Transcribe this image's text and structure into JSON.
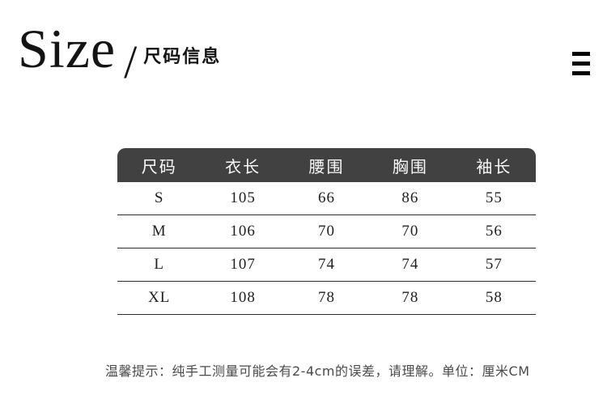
{
  "header": {
    "title_en": "Size",
    "divider": "/",
    "title_zh": "尺码信息",
    "menu_icon": "hamburger-menu-icon"
  },
  "table": {
    "headers": [
      "尺码",
      "衣长",
      "腰围",
      "胸围",
      "袖长"
    ],
    "rows": [
      {
        "cells": [
          "S",
          "105",
          "66",
          "86",
          "55"
        ]
      },
      {
        "cells": [
          "M",
          "106",
          "70",
          "70",
          "56"
        ]
      },
      {
        "cells": [
          "L",
          "107",
          "74",
          "74",
          "57"
        ]
      },
      {
        "cells": [
          "XL",
          "108",
          "78",
          "78",
          "58"
        ]
      }
    ]
  },
  "footer": {
    "note": "温馨提示：纯手工测量可能会有2-4cm的误差，请理解。单位：厘米CM"
  },
  "colors": {
    "title_text": "#141414",
    "icon_color": "#000000",
    "header_bg": "#414141",
    "header_text": "#fafafa",
    "body_text": "#1f1f1f",
    "divider_line": "#2d2d2d",
    "note_text": "#4a4a4a"
  }
}
